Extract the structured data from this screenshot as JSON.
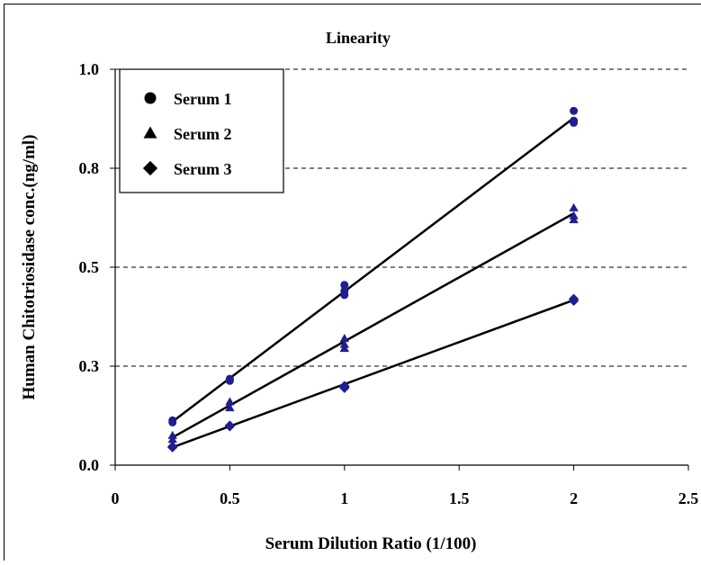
{
  "chart_data": {
    "type": "scatter",
    "title": "Linearity",
    "xlabel": "Serum Dilution Ratio (1/100)",
    "ylabel": "Human Chitotriosidase conc.(ng/ml)",
    "xlim": [
      0,
      2.5
    ],
    "ylim": [
      0,
      1.0
    ],
    "x_ticks": [
      0,
      0.5,
      1,
      1.5,
      2,
      2.5
    ],
    "x_tick_labels": [
      "0",
      "0.5",
      "1",
      "1.5",
      "2",
      "2.5"
    ],
    "y_ticks": [
      0,
      0.25,
      0.5,
      0.75,
      1.0
    ],
    "y_tick_labels": [
      "0.0",
      "0.3",
      "0.5",
      "0.8",
      "1.0"
    ],
    "grid": "horizontal dashed",
    "legend_position": "top-left",
    "marker_color": "#1f1f8f",
    "line_color": "#000000",
    "series": [
      {
        "name": "Serum 1",
        "marker": "circle",
        "points": [
          [
            0.25,
            0.113
          ],
          [
            0.25,
            0.108
          ],
          [
            0.5,
            0.218
          ],
          [
            0.5,
            0.213
          ],
          [
            1,
            0.455
          ],
          [
            1,
            0.43
          ],
          [
            1,
            0.44
          ],
          [
            2,
            0.895
          ],
          [
            2,
            0.87
          ],
          [
            2,
            0.865
          ]
        ],
        "fit": [
          [
            0.25,
            0.11
          ],
          [
            2,
            0.877
          ]
        ]
      },
      {
        "name": "Serum 2",
        "marker": "triangle",
        "points": [
          [
            0.25,
            0.075
          ],
          [
            0.25,
            0.065
          ],
          [
            0.5,
            0.16
          ],
          [
            0.5,
            0.145
          ],
          [
            1,
            0.32
          ],
          [
            1,
            0.305
          ],
          [
            1,
            0.295
          ],
          [
            2,
            0.65
          ],
          [
            2,
            0.63
          ],
          [
            2,
            0.62
          ]
        ],
        "fit": [
          [
            0.25,
            0.07
          ],
          [
            2,
            0.636
          ]
        ]
      },
      {
        "name": "Serum 3",
        "marker": "diamond",
        "points": [
          [
            0.25,
            0.047
          ],
          [
            0.25,
            0.045
          ],
          [
            0.5,
            0.1
          ],
          [
            0.5,
            0.098
          ],
          [
            1,
            0.2
          ],
          [
            1,
            0.198
          ],
          [
            1,
            0.195
          ],
          [
            2,
            0.42
          ],
          [
            2,
            0.415
          ]
        ],
        "fit": [
          [
            0.25,
            0.045
          ],
          [
            2,
            0.417
          ]
        ]
      }
    ]
  }
}
